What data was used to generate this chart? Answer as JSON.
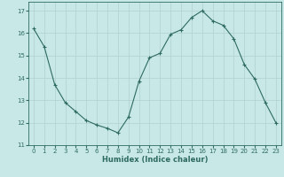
{
  "x": [
    0,
    1,
    2,
    3,
    4,
    5,
    6,
    7,
    8,
    9,
    10,
    11,
    12,
    13,
    14,
    15,
    16,
    17,
    18,
    19,
    20,
    21,
    22,
    23
  ],
  "y": [
    16.2,
    15.4,
    13.7,
    12.9,
    12.5,
    12.1,
    11.9,
    11.75,
    11.55,
    12.25,
    13.85,
    14.9,
    15.1,
    15.95,
    16.15,
    16.7,
    17.0,
    16.55,
    16.35,
    15.75,
    14.6,
    13.95,
    12.9,
    12.0
  ],
  "line_color": "#2e6b5e",
  "marker": "+",
  "marker_size": 3,
  "bg_color": "#c8e8e8",
  "grid_color": "#b0d0d0",
  "xlabel": "Humidex (Indice chaleur)",
  "ylim": [
    11,
    17.4
  ],
  "xlim": [
    -0.5,
    23.5
  ],
  "yticks": [
    11,
    12,
    13,
    14,
    15,
    16,
    17
  ],
  "xticks": [
    0,
    1,
    2,
    3,
    4,
    5,
    6,
    7,
    8,
    9,
    10,
    11,
    12,
    13,
    14,
    15,
    16,
    17,
    18,
    19,
    20,
    21,
    22,
    23
  ],
  "xlabel_fontsize": 6.0,
  "tick_fontsize": 5.0,
  "line_width": 0.8,
  "marker_edge_width": 0.8
}
